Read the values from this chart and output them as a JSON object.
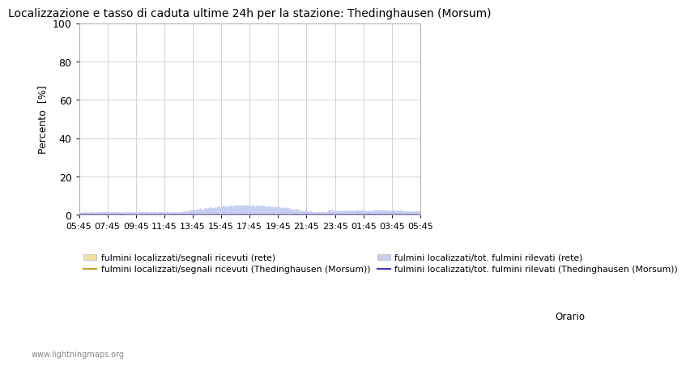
{
  "title": "Localizzazione e tasso di caduta ultime 24h per la stazione: Thedinghausen (Morsum)",
  "ylabel": "Percento  [%]",
  "xlabel_orario": "Orario",
  "watermark": "www.lightningmaps.org",
  "ylim": [
    0,
    100
  ],
  "yticks": [
    0,
    20,
    40,
    60,
    80,
    100
  ],
  "xtick_labels": [
    "05:45",
    "07:45",
    "09:45",
    "11:45",
    "13:45",
    "15:45",
    "17:45",
    "19:45",
    "21:45",
    "23:45",
    "01:45",
    "03:45",
    "05:45"
  ],
  "n_points": 289,
  "bg_color": "#ffffff",
  "plot_bg_color": "#ffffff",
  "grid_color": "#cccccc",
  "fill_rete_segnali_color": "#f0dfa0",
  "fill_rete_tot_color": "#c8cef0",
  "line_station_segnali_color": "#c8a020",
  "line_station_tot_color": "#3838b0",
  "legend_labels": [
    "fulmini localizzati/segnali ricevuti (rete)",
    "fulmini localizzati/segnali ricevuti (Thedinghausen (Morsum))",
    "fulmini localizzati/tot. fulmini rilevati (rete)",
    "fulmini localizzati/tot. fulmini rilevati (Thedinghausen (Morsum))"
  ]
}
